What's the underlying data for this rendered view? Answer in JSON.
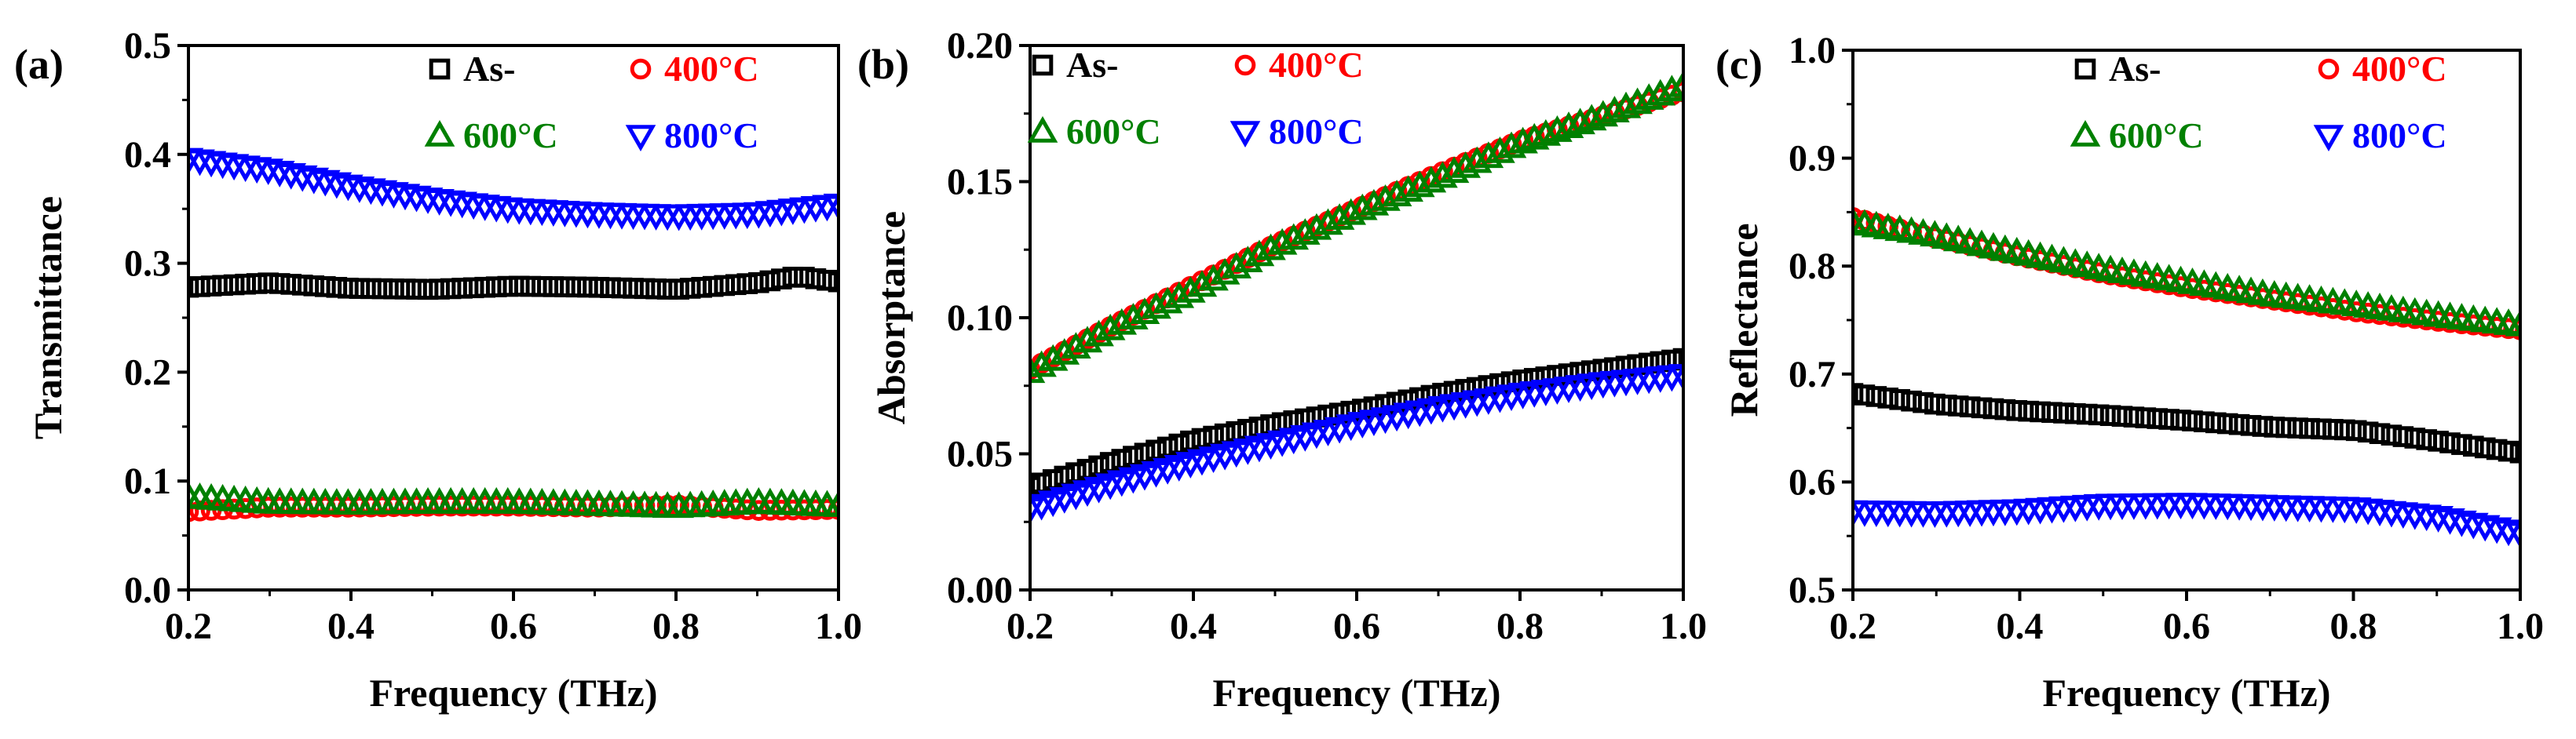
{
  "chart_data": [
    {
      "type": "scatter",
      "panel_label": "(a)",
      "xlabel": "Frequency (THz)",
      "ylabel": "Transmittance",
      "xlim": [
        0.2,
        1.0
      ],
      "ylim": [
        0.0,
        0.5
      ],
      "xticks": [
        0.2,
        0.4,
        0.6,
        0.8,
        1.0
      ],
      "xtick_labels": [
        "0.2",
        "0.4",
        "0.6",
        "0.8",
        "1.0"
      ],
      "yticks": [
        0.0,
        0.1,
        0.2,
        0.3,
        0.4,
        0.5
      ],
      "ytick_labels": [
        "0.0",
        "0.1",
        "0.2",
        "0.3",
        "0.4",
        "0.5"
      ],
      "legend_position": "top-right",
      "series": [
        {
          "name": "As-",
          "marker": "square",
          "color": "#000000",
          "points": [
            [
              0.2,
              0.278
            ],
            [
              0.3,
              0.282
            ],
            [
              0.4,
              0.277
            ],
            [
              0.5,
              0.276
            ],
            [
              0.6,
              0.279
            ],
            [
              0.7,
              0.278
            ],
            [
              0.8,
              0.276
            ],
            [
              0.9,
              0.282
            ],
            [
              0.95,
              0.288
            ],
            [
              1.0,
              0.283
            ]
          ]
        },
        {
          "name": "400°C",
          "marker": "circle",
          "color": "#ff0000",
          "points": [
            [
              0.2,
              0.072
            ],
            [
              0.3,
              0.076
            ],
            [
              0.4,
              0.076
            ],
            [
              0.5,
              0.077
            ],
            [
              0.6,
              0.077
            ],
            [
              0.7,
              0.076
            ],
            [
              0.8,
              0.078
            ],
            [
              0.9,
              0.073
            ],
            [
              1.0,
              0.074
            ]
          ]
        },
        {
          "name": "600°C",
          "marker": "triangle-up",
          "color": "#008000",
          "points": [
            [
              0.2,
              0.085
            ],
            [
              0.3,
              0.08
            ],
            [
              0.4,
              0.079
            ],
            [
              0.5,
              0.08
            ],
            [
              0.6,
              0.08
            ],
            [
              0.7,
              0.078
            ],
            [
              0.8,
              0.076
            ],
            [
              0.9,
              0.08
            ],
            [
              1.0,
              0.077
            ]
          ]
        },
        {
          "name": "800°C",
          "marker": "triangle-down",
          "color": "#0000ff",
          "points": [
            [
              0.2,
              0.396
            ],
            [
              0.3,
              0.386
            ],
            [
              0.4,
              0.371
            ],
            [
              0.5,
              0.359
            ],
            [
              0.6,
              0.35
            ],
            [
              0.7,
              0.346
            ],
            [
              0.8,
              0.344
            ],
            [
              0.9,
              0.346
            ],
            [
              1.0,
              0.354
            ]
          ]
        }
      ]
    },
    {
      "type": "scatter",
      "panel_label": "(b)",
      "xlabel": "Frequency (THz)",
      "ylabel": "Absorptance",
      "xlim": [
        0.2,
        1.0
      ],
      "ylim": [
        0.0,
        0.2
      ],
      "xticks": [
        0.2,
        0.4,
        0.6,
        0.8,
        1.0
      ],
      "xtick_labels": [
        "0.2",
        "0.4",
        "0.6",
        "0.8",
        "1.0"
      ],
      "yticks": [
        0.0,
        0.05,
        0.1,
        0.15,
        0.2
      ],
      "ytick_labels": [
        "0.00",
        "0.05",
        "0.10",
        "0.15",
        "0.20"
      ],
      "legend_position": "top-left",
      "series": [
        {
          "name": "As-",
          "marker": "square",
          "color": "#000000",
          "points": [
            [
              0.2,
              0.038
            ],
            [
              0.3,
              0.047
            ],
            [
              0.4,
              0.055
            ],
            [
              0.5,
              0.061
            ],
            [
              0.6,
              0.066
            ],
            [
              0.7,
              0.072
            ],
            [
              0.8,
              0.077
            ],
            [
              0.9,
              0.081
            ],
            [
              1.0,
              0.085
            ]
          ]
        },
        {
          "name": "400°C",
          "marker": "circle",
          "color": "#ff0000",
          "points": [
            [
              0.2,
              0.081
            ],
            [
              0.3,
              0.097
            ],
            [
              0.4,
              0.112
            ],
            [
              0.5,
              0.127
            ],
            [
              0.6,
              0.14
            ],
            [
              0.7,
              0.153
            ],
            [
              0.8,
              0.165
            ],
            [
              0.9,
              0.174
            ],
            [
              1.0,
              0.183
            ]
          ]
        },
        {
          "name": "600°C",
          "marker": "triangle-up",
          "color": "#008000",
          "points": [
            [
              0.2,
              0.08
            ],
            [
              0.3,
              0.096
            ],
            [
              0.4,
              0.11
            ],
            [
              0.5,
              0.126
            ],
            [
              0.6,
              0.139
            ],
            [
              0.7,
              0.151
            ],
            [
              0.8,
              0.164
            ],
            [
              0.9,
              0.174
            ],
            [
              1.0,
              0.185
            ]
          ]
        },
        {
          "name": "800°C",
          "marker": "triangle-down",
          "color": "#0000ff",
          "points": [
            [
              0.2,
              0.03
            ],
            [
              0.3,
              0.039
            ],
            [
              0.4,
              0.047
            ],
            [
              0.5,
              0.054
            ],
            [
              0.6,
              0.061
            ],
            [
              0.7,
              0.067
            ],
            [
              0.8,
              0.072
            ],
            [
              0.9,
              0.076
            ],
            [
              1.0,
              0.079
            ]
          ]
        }
      ]
    },
    {
      "type": "scatter",
      "panel_label": "(c)",
      "xlabel": "Frequency (THz)",
      "ylabel": "Reflectance",
      "xlim": [
        0.2,
        1.0
      ],
      "ylim": [
        0.5,
        1.0
      ],
      "xticks": [
        0.2,
        0.4,
        0.6,
        0.8,
        1.0
      ],
      "xtick_labels": [
        "0.2",
        "0.4",
        "0.6",
        "0.8",
        "1.0"
      ],
      "yticks": [
        0.5,
        0.6,
        0.7,
        0.8,
        0.9,
        1.0
      ],
      "ytick_labels": [
        "0.5",
        "0.6",
        "0.7",
        "0.8",
        "0.9",
        "1.0"
      ],
      "legend_position": "top-right",
      "series": [
        {
          "name": "As-",
          "marker": "square",
          "color": "#000000",
          "points": [
            [
              0.2,
              0.682
            ],
            [
              0.3,
              0.672
            ],
            [
              0.4,
              0.666
            ],
            [
              0.5,
              0.662
            ],
            [
              0.6,
              0.657
            ],
            [
              0.7,
              0.651
            ],
            [
              0.8,
              0.648
            ],
            [
              0.9,
              0.638
            ],
            [
              1.0,
              0.627
            ]
          ]
        },
        {
          "name": "400°C",
          "marker": "circle",
          "color": "#ff0000",
          "points": [
            [
              0.2,
              0.845
            ],
            [
              0.3,
              0.826
            ],
            [
              0.4,
              0.809
            ],
            [
              0.5,
              0.793
            ],
            [
              0.6,
              0.78
            ],
            [
              0.7,
              0.769
            ],
            [
              0.8,
              0.758
            ],
            [
              0.9,
              0.749
            ],
            [
              1.0,
              0.741
            ]
          ]
        },
        {
          "name": "600°C",
          "marker": "triangle-up",
          "color": "#008000",
          "points": [
            [
              0.2,
              0.84
            ],
            [
              0.3,
              0.828
            ],
            [
              0.4,
              0.812
            ],
            [
              0.5,
              0.797
            ],
            [
              0.6,
              0.785
            ],
            [
              0.7,
              0.773
            ],
            [
              0.8,
              0.764
            ],
            [
              0.9,
              0.754
            ],
            [
              1.0,
              0.745
            ]
          ]
        },
        {
          "name": "800°C",
          "marker": "triangle-down",
          "color": "#0000ff",
          "points": [
            [
              0.2,
              0.573
            ],
            [
              0.3,
              0.572
            ],
            [
              0.4,
              0.574
            ],
            [
              0.5,
              0.579
            ],
            [
              0.6,
              0.58
            ],
            [
              0.7,
              0.578
            ],
            [
              0.8,
              0.576
            ],
            [
              0.9,
              0.568
            ],
            [
              1.0,
              0.553
            ]
          ]
        }
      ]
    }
  ]
}
